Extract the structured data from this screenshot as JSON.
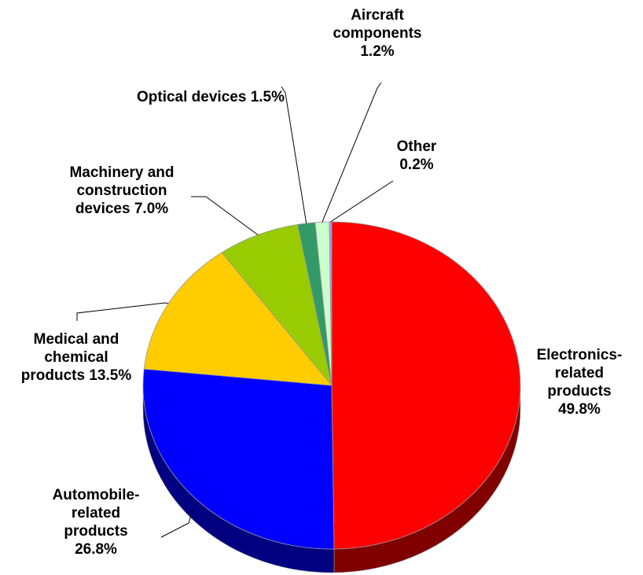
{
  "chart_data": {
    "type": "pie",
    "categories": [
      "Electronics-related products",
      "Automobile-related products",
      "Medical and chemical products",
      "Machinery and construction devices",
      "Optical devices",
      "Aircraft components",
      "Other"
    ],
    "values": [
      49.8,
      26.8,
      13.5,
      7.0,
      1.5,
      1.2,
      0.2
    ],
    "value_labels": [
      "49.8%",
      "26.8%",
      "13.5%",
      "7.0%",
      "1.5%",
      "1.2%",
      "0.2%"
    ],
    "colors": [
      "#ff0000",
      "#0000ff",
      "#ffcc00",
      "#99cc00",
      "#339966",
      "#ccffcc",
      "#9999ff"
    ]
  }
}
